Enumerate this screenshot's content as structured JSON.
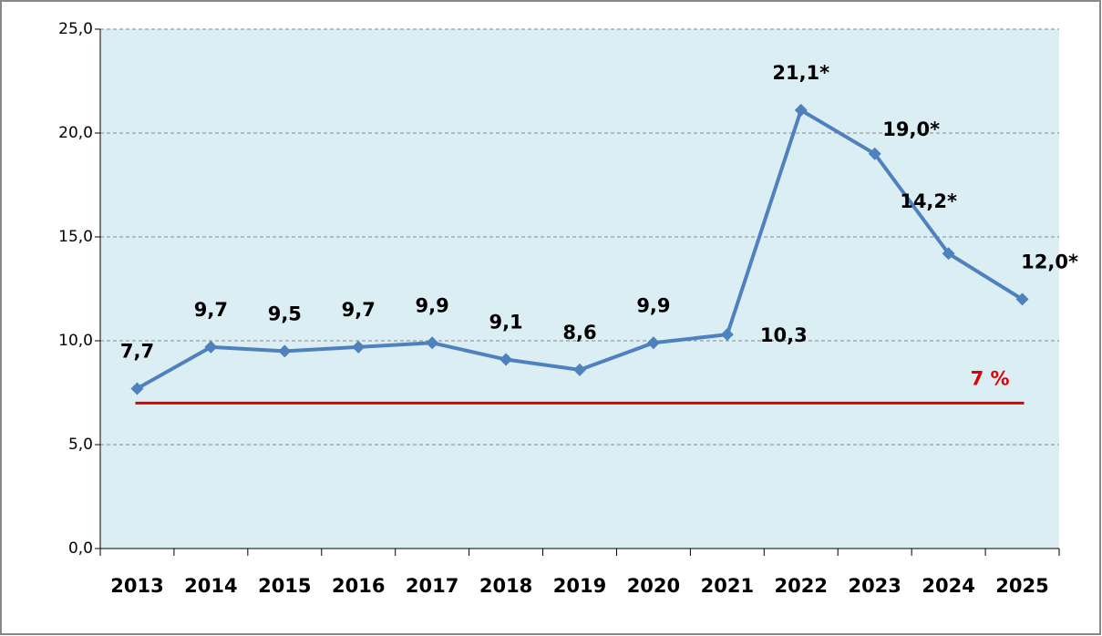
{
  "chart_data": {
    "type": "line",
    "categories": [
      "2013",
      "2014",
      "2015",
      "2016",
      "2017",
      "2018",
      "2019",
      "2020",
      "2021",
      "2022",
      "2023",
      "2024",
      "2025"
    ],
    "series": [
      {
        "color": "#4f81bd",
        "values": [
          7.7,
          9.7,
          9.5,
          9.7,
          9.9,
          9.1,
          8.6,
          9.9,
          10.3,
          21.1,
          19.0,
          14.2,
          12.0
        ],
        "value_labels": [
          "7,7",
          "9,7",
          "9,5",
          "9,7",
          "9,9",
          "9,1",
          "8,6",
          "9,9",
          "10,3",
          "21,1*",
          "19,0*",
          "14,2*",
          "12,0*"
        ]
      }
    ],
    "ylim": [
      0,
      25
    ],
    "yticks": [
      {
        "value": 0,
        "label": "0,0"
      },
      {
        "value": 5,
        "label": "5,0"
      },
      {
        "value": 10,
        "label": "10,0"
      },
      {
        "value": 15,
        "label": "15,0"
      },
      {
        "value": 20,
        "label": "20,0"
      },
      {
        "value": 25,
        "label": "25,0"
      }
    ],
    "grid": true,
    "plot_background": "#dbeef4",
    "reference_line": {
      "value": 7,
      "label": "7 %",
      "color": "#e00000"
    }
  }
}
